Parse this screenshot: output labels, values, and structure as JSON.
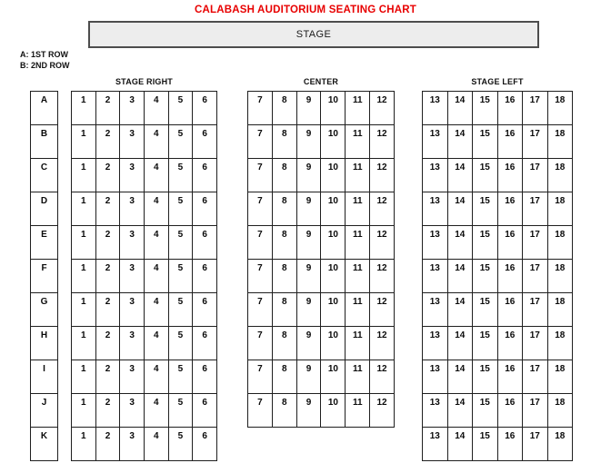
{
  "title": "CALABASH AUDITORIUM SEATING CHART",
  "stage": {
    "label": "STAGE"
  },
  "legend": {
    "line1": "A: 1ST ROW",
    "line2": "B: 2ND ROW"
  },
  "row_labels": [
    "A",
    "B",
    "C",
    "D",
    "E",
    "F",
    "G",
    "H",
    "I",
    "J",
    "K"
  ],
  "sections": [
    {
      "name": "STAGE RIGHT",
      "seat_numbers": [
        1,
        2,
        3,
        4,
        5,
        6
      ],
      "num_rows": 11
    },
    {
      "name": "CENTER",
      "seat_numbers": [
        7,
        8,
        9,
        10,
        11,
        12
      ],
      "num_rows": 10
    },
    {
      "name": "STAGE LEFT",
      "seat_numbers": [
        13,
        14,
        15,
        16,
        17,
        18
      ],
      "num_rows": 11
    }
  ],
  "colors": {
    "title_red": "#e80000",
    "stage_fill": "#ededed",
    "stage_border": "#4d4d4d",
    "grid_border": "#1f1f1f",
    "background": "#ffffff"
  }
}
